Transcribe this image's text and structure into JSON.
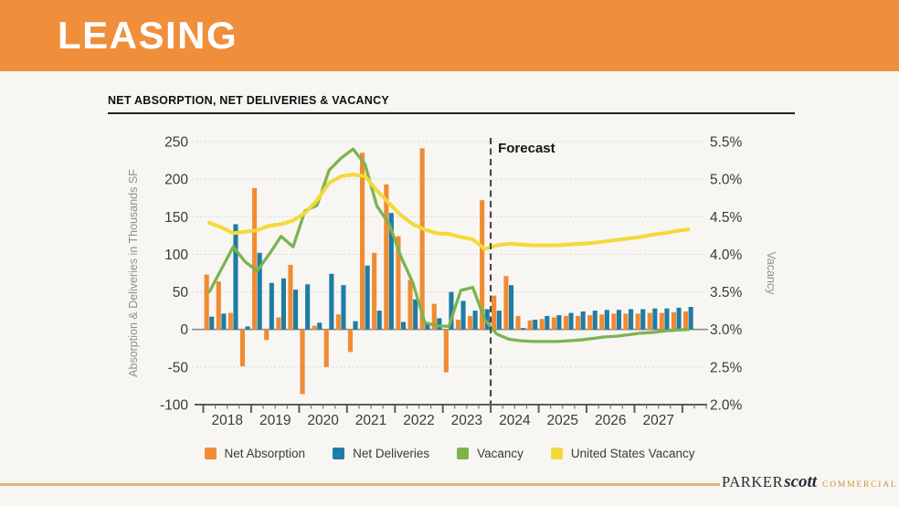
{
  "header": {
    "title": "LEASING"
  },
  "chart": {
    "title": "NET ABSORPTION, NET DELIVERIES & VACANCY",
    "forecast_label": "Forecast"
  },
  "theme": {
    "banner_orange": "#EF8F3B",
    "background": "#F7F6F3",
    "footer_gold": "#D9B87D",
    "logo_dark": "#2B2A32",
    "logo_accent": "#C8923F"
  },
  "chart_data": {
    "type": "combo-bar-line",
    "x_unit": "quarter",
    "quarter_range": "2018 Q1 - 2028 Q1",
    "years": [
      "2018",
      "2019",
      "2020",
      "2021",
      "2022",
      "2023",
      "2024",
      "2025",
      "2026",
      "2027"
    ],
    "left_axis": {
      "title": "Absorption & Deliveries in Thousands SF",
      "min": -100,
      "max": 250,
      "step": 50
    },
    "right_axis": {
      "title": "Vacancy",
      "min": 2.0,
      "max": 5.5,
      "step": 0.5,
      "format": "percent"
    },
    "forecast_starts": "2024 Q1",
    "grid": "dotted-horizontal",
    "legend_position": "bottom-center",
    "series": [
      {
        "name": "Net Absorption",
        "kind": "bar",
        "axis": "left",
        "color": "#F08B33",
        "values": [
          73,
          64,
          22,
          -49,
          188,
          -14,
          16,
          86,
          -86,
          5,
          -50,
          20,
          -30,
          235,
          102,
          193,
          124,
          66,
          241,
          34,
          -57,
          13,
          18,
          172,
          45,
          71,
          18,
          12,
          14,
          16,
          18,
          18,
          19,
          20,
          21,
          21,
          21,
          22,
          22,
          23,
          24
        ]
      },
      {
        "name": "Net Deliveries",
        "kind": "bar",
        "axis": "left",
        "color": "#1F7CA4",
        "values": [
          17,
          21,
          140,
          4,
          102,
          62,
          68,
          53,
          60,
          9,
          74,
          59,
          11,
          85,
          25,
          155,
          10,
          40,
          7,
          15,
          50,
          38,
          25,
          27,
          25,
          59,
          2,
          13,
          18,
          19,
          22,
          24,
          25,
          26,
          26,
          27,
          27,
          28,
          28,
          29,
          30
        ]
      },
      {
        "name": "Vacancy",
        "kind": "line",
        "axis": "right",
        "color": "#7CB34F",
        "values": [
          3.5,
          3.8,
          4.1,
          3.9,
          3.78,
          4.0,
          4.24,
          4.1,
          4.58,
          4.65,
          5.12,
          5.28,
          5.4,
          5.2,
          4.64,
          4.41,
          3.97,
          3.62,
          3.09,
          3.05,
          3.04,
          3.52,
          3.56,
          3.13,
          2.94,
          2.87,
          2.85,
          2.84,
          2.84,
          2.84,
          2.85,
          2.86,
          2.88,
          2.9,
          2.91,
          2.93,
          2.95,
          2.96,
          2.98,
          2.99,
          3.0
        ]
      },
      {
        "name": "United States Vacancy",
        "kind": "line",
        "axis": "right",
        "color": "#F2DA3A",
        "values": [
          4.42,
          4.36,
          4.28,
          4.3,
          4.32,
          4.38,
          4.4,
          4.45,
          4.55,
          4.72,
          4.95,
          5.04,
          5.06,
          5.04,
          4.85,
          4.68,
          4.52,
          4.4,
          4.33,
          4.28,
          4.27,
          4.23,
          4.2,
          4.07,
          4.12,
          4.14,
          4.13,
          4.12,
          4.12,
          4.12,
          4.13,
          4.14,
          4.15,
          4.17,
          4.19,
          4.21,
          4.23,
          4.26,
          4.28,
          4.31,
          4.33
        ]
      }
    ]
  },
  "footer": {
    "brand_part1": "PARKER",
    "brand_part2": "scott",
    "brand_part3": "COMMERCIAL"
  }
}
